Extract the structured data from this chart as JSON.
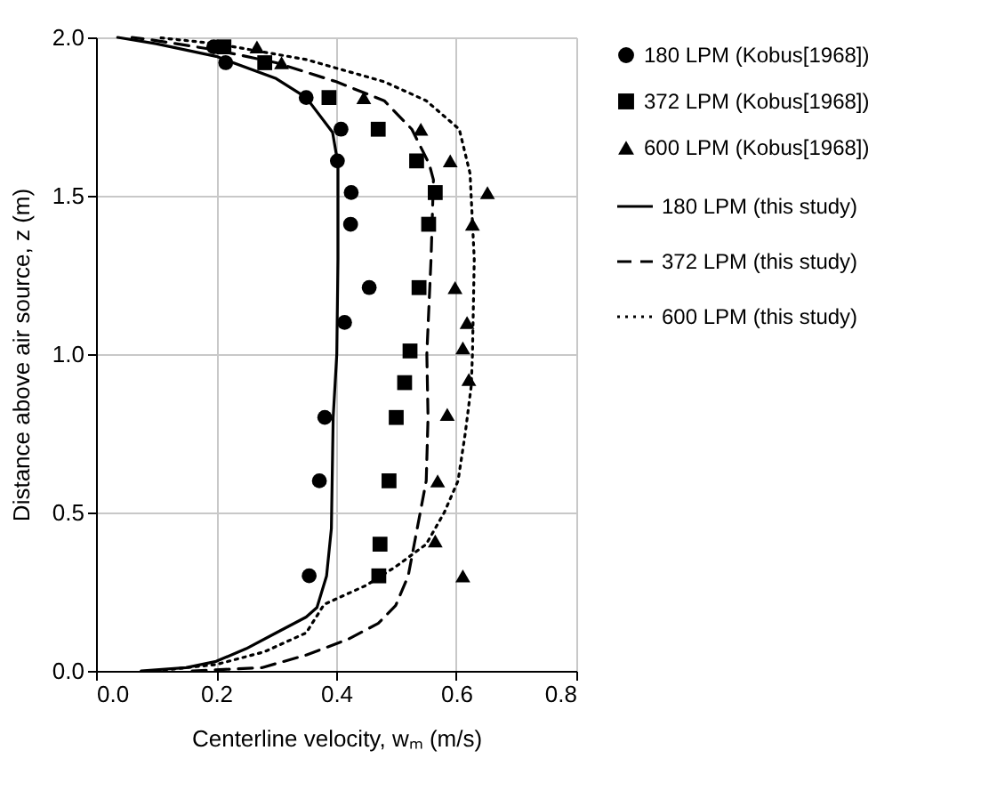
{
  "chart_data": {
    "type": "scatter",
    "xlabel": "Centerline velocity, wₘ (m/s)",
    "ylabel": "Distance above air source, z (m)",
    "xlim": [
      0,
      0.8
    ],
    "ylim": [
      0,
      2
    ],
    "xticks": [
      {
        "value": 0,
        "label": "0.0"
      },
      {
        "value": 0.2,
        "label": "0.2"
      },
      {
        "value": 0.4,
        "label": "0.4"
      },
      {
        "value": 0.6,
        "label": "0.6"
      },
      {
        "value": 0.8,
        "label": "0.8"
      }
    ],
    "yticks": [
      {
        "value": 0,
        "label": "0.0"
      },
      {
        "value": 0.5,
        "label": "0.5"
      },
      {
        "value": 1,
        "label": "1.0"
      },
      {
        "value": 1.5,
        "label": "1.5"
      },
      {
        "value": 2,
        "label": "2.0"
      }
    ],
    "grid": true,
    "legend": "right",
    "series": [
      {
        "name": "180 LPM (Kobus[1968])",
        "type": "scatter",
        "marker": "circle",
        "color": "#000000",
        "x": [
          0.196,
          0.216,
          0.35,
          0.408,
          0.402,
          0.425,
          0.424,
          0.455,
          0.414,
          0.381,
          0.372,
          0.355
        ],
        "values": [
          1.97,
          1.92,
          1.81,
          1.71,
          1.61,
          1.51,
          1.41,
          1.21,
          1.1,
          0.8,
          0.6,
          0.3
        ]
      },
      {
        "name": "372 LPM (Kobus[1968])",
        "type": "scatter",
        "marker": "square",
        "color": "#000000",
        "x": [
          0.213,
          0.281,
          0.388,
          0.47,
          0.534,
          0.565,
          0.554,
          0.538,
          0.523,
          0.514,
          0.5,
          0.488,
          0.473,
          0.471
        ],
        "values": [
          1.97,
          1.92,
          1.81,
          1.71,
          1.61,
          1.51,
          1.41,
          1.21,
          1.01,
          0.91,
          0.8,
          0.6,
          0.4,
          0.3
        ]
      },
      {
        "name": "600 LPM (Kobus[1968])",
        "type": "scatter",
        "marker": "triangle",
        "color": "#000000",
        "x": [
          0.268,
          0.309,
          0.446,
          0.541,
          0.59,
          0.652,
          0.627,
          0.598,
          0.618,
          0.611,
          0.621,
          0.585,
          0.569,
          0.565,
          0.611
        ],
        "values": [
          1.97,
          1.92,
          1.81,
          1.71,
          1.61,
          1.51,
          1.41,
          1.21,
          1.1,
          1.02,
          0.92,
          0.81,
          0.6,
          0.41,
          0.3
        ]
      },
      {
        "name": "180 LPM (this study)",
        "type": "line",
        "line_style": "solid",
        "color": "#000000",
        "x": [
          0.075,
          0.15,
          0.2,
          0.25,
          0.3,
          0.35,
          0.368,
          0.384,
          0.392,
          0.395,
          0.401,
          0.403,
          0.403,
          0.394,
          0.35,
          0.3,
          0.2,
          0.1,
          0.036
        ],
        "values": [
          0,
          0.01,
          0.03,
          0.07,
          0.12,
          0.17,
          0.2,
          0.3,
          0.45,
          0.8,
          1.0,
          1.3,
          1.6,
          1.7,
          1.81,
          1.87,
          1.94,
          1.98,
          2.0
        ]
      },
      {
        "name": "372 LPM (this study)",
        "type": "line",
        "line_style": "dashed",
        "color": "#000000",
        "x": [
          0.16,
          0.276,
          0.35,
          0.42,
          0.47,
          0.499,
          0.52,
          0.535,
          0.55,
          0.553,
          0.551,
          0.558,
          0.562,
          0.555,
          0.526,
          0.48,
          0.4,
          0.3,
          0.2,
          0.1,
          0.06
        ],
        "values": [
          0,
          0.01,
          0.05,
          0.1,
          0.15,
          0.206,
          0.3,
          0.45,
          0.6,
          0.8,
          1.0,
          1.3,
          1.55,
          1.6,
          1.71,
          1.8,
          1.86,
          1.92,
          1.96,
          1.99,
          2.0
        ]
      },
      {
        "name": "600 LPM (this study)",
        "type": "line",
        "line_style": "dotted",
        "color": "#000000",
        "x": [
          0.1,
          0.2,
          0.28,
          0.35,
          0.38,
          0.45,
          0.5,
          0.55,
          0.58,
          0.603,
          0.615,
          0.625,
          0.627,
          0.63,
          0.623,
          0.605,
          0.55,
          0.48,
          0.35,
          0.2,
          0.1
        ],
        "values": [
          0,
          0.02,
          0.06,
          0.12,
          0.21,
          0.27,
          0.33,
          0.4,
          0.5,
          0.6,
          0.75,
          0.9,
          1.0,
          1.3,
          1.57,
          1.71,
          1.8,
          1.86,
          1.93,
          1.98,
          2.0
        ]
      }
    ]
  }
}
